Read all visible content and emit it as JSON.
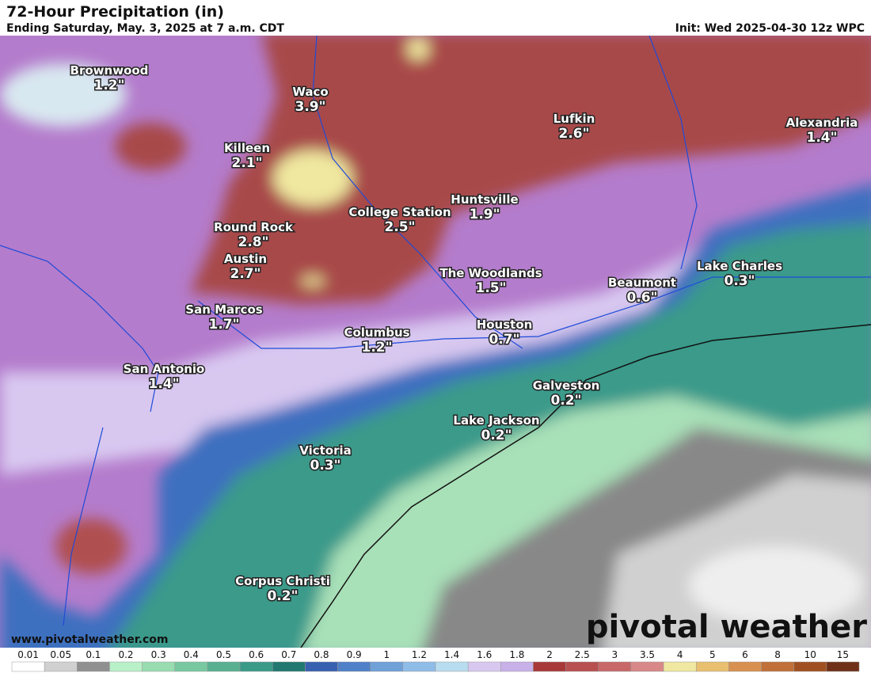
{
  "header": {
    "title": "72-Hour Precipitation (in)",
    "subtitle": "Ending Saturday, May. 3, 2025 at 7 a.m. CDT",
    "init": "Init: Wed 2025-04-30 12z WPC"
  },
  "cities": [
    {
      "name": "Brownwood",
      "amount": "1.2\""
    },
    {
      "name": "Waco",
      "amount": "3.9\""
    },
    {
      "name": "Killeen",
      "amount": "2.1\""
    },
    {
      "name": "Lufkin",
      "amount": "2.6\""
    },
    {
      "name": "Alexandria",
      "amount": "1.4\""
    },
    {
      "name": "College Station",
      "amount": "2.5\""
    },
    {
      "name": "Huntsville",
      "amount": "1.9\""
    },
    {
      "name": "Round Rock",
      "amount": "2.8\""
    },
    {
      "name": "Austin",
      "amount": "2.7\""
    },
    {
      "name": "The Woodlands",
      "amount": "1.5\""
    },
    {
      "name": "Beaumont",
      "amount": "0.6\""
    },
    {
      "name": "Lake Charles",
      "amount": "0.3\""
    },
    {
      "name": "San Marcos",
      "amount": "1.7\""
    },
    {
      "name": "Columbus",
      "amount": "1.2\""
    },
    {
      "name": "Houston",
      "amount": "0.7\""
    },
    {
      "name": "San Antonio",
      "amount": "1.4\""
    },
    {
      "name": "Galveston",
      "amount": "0.2\""
    },
    {
      "name": "Lake Jackson",
      "amount": "0.2\""
    },
    {
      "name": "Victoria",
      "amount": "0.3\""
    },
    {
      "name": "Corpus Christi",
      "amount": "0.2\""
    }
  ],
  "legend": {
    "labels": [
      "0.01",
      "0.05",
      "0.1",
      "0.2",
      "0.3",
      "0.4",
      "0.5",
      "0.6",
      "0.7",
      "0.8",
      "0.9",
      "1",
      "1.2",
      "1.4",
      "1.6",
      "1.8",
      "2",
      "2.5",
      "3",
      "3.5",
      "4",
      "5",
      "6",
      "8",
      "10",
      "15"
    ],
    "colors": [
      "#ffffff",
      "#d0d0d0",
      "#909090",
      "#b8f0c8",
      "#98dcb0",
      "#78c8a0",
      "#58b090",
      "#3a9a88",
      "#207870",
      "#3860b0",
      "#5080c8",
      "#70a0d8",
      "#90bce8",
      "#b8dcf0",
      "#d8c8f0",
      "#c8b0e8",
      "#a83838",
      "#b85050",
      "#c86868",
      "#d88888",
      "#f0e8a0",
      "#e8c070",
      "#d89050",
      "#c07038",
      "#a05020",
      "#703018"
    ]
  },
  "footer": {
    "website": "www.pivotalweather.com",
    "logo": "pivotal weather"
  }
}
